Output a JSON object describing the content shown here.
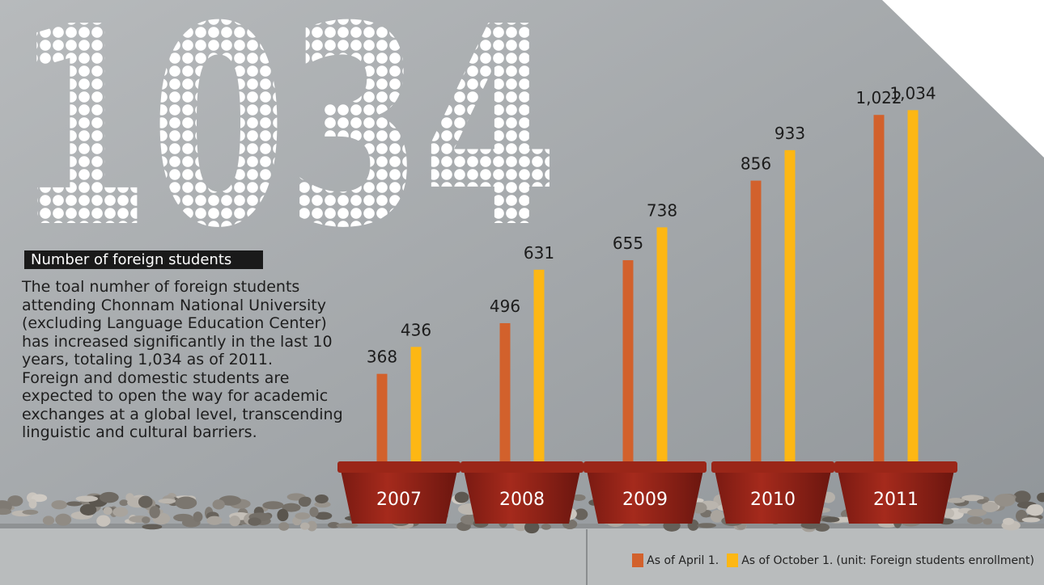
{
  "chart_data": {
    "type": "bar",
    "headline": "1034",
    "title": "Number of foreign students",
    "description": [
      "The toal numher of foreign students",
      "attending Chonnam National University",
      "(excluding Language Education Center)",
      "has increased significantly in the last 10",
      "years, totaling 1,034 as of 2011.",
      "Foreign and domestic students are",
      "expected to open the way for academic",
      "exchanges at a global level, transcending",
      "linguistic and cultural barriers."
    ],
    "categories": [
      "2007",
      "2008",
      "2009",
      "2010",
      "2011"
    ],
    "series": [
      {
        "name": "As of April 1.",
        "color": "#d2612c",
        "values": [
          368,
          496,
          655,
          856,
          1022
        ],
        "value_labels": [
          "368",
          "496",
          "655",
          "856",
          "1,022"
        ]
      },
      {
        "name": "As of October 1.",
        "color": "#fdb714",
        "values": [
          436,
          631,
          738,
          933,
          1034
        ],
        "value_labels": [
          "436",
          "631",
          "738",
          "933",
          "1,034"
        ]
      }
    ],
    "unit_note": "(unit: Foreign students enrollment)"
  }
}
